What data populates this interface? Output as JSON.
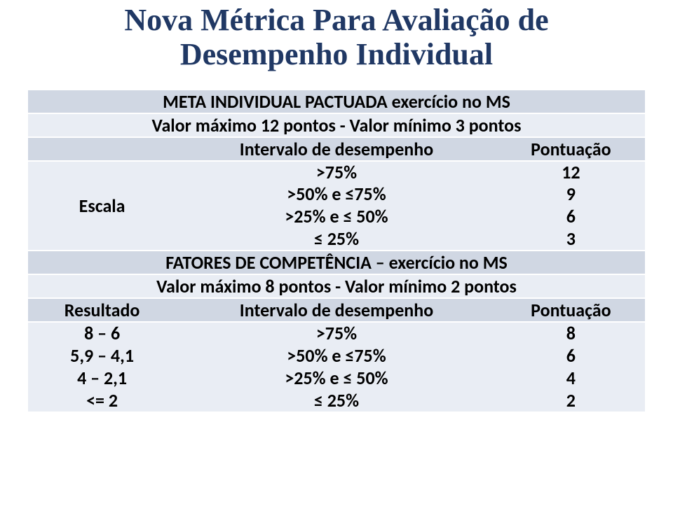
{
  "title": {
    "line1": "Nova Métrica Para  Avaliação de",
    "line2": "Desempenho Individual",
    "color": "#203864",
    "font_family": "Times New Roman",
    "font_size_pt": 32,
    "font_weight": "bold"
  },
  "table": {
    "band_colors": {
      "dark": "#d0d7e3",
      "light": "#e9edf4"
    },
    "separator_color": "#ffffff",
    "text_color": "#000000",
    "font_size_pt": 20,
    "font_weight": "bold",
    "section1": {
      "header": "META INDIVIDUAL PACTUADA exercício no MS",
      "sub": "Valor máximo 12 pontos - Valor mínimo 3 pontos",
      "left_label": "Escala",
      "mid_header": "Intervalo de desempenho",
      "right_header": "Pontuação",
      "intervals": [
        ">75%",
        ">50% e ≤75%",
        ">25% e ≤ 50%",
        "≤ 25%"
      ],
      "scores": [
        "12",
        "9",
        "6",
        "3"
      ]
    },
    "section2": {
      "header": "FATORES DE COMPETÊNCIA – exercício no MS",
      "sub": "Valor máximo 8 pontos - Valor mínimo 2 pontos",
      "left_label": "Resultado",
      "mid_header": "Intervalo de desempenho",
      "right_header": "Pontuação",
      "result_bins": [
        "8 – 6",
        "5,9 – 4,1",
        "4 – 2,1",
        "<= 2"
      ],
      "intervals": [
        ">75%",
        ">50% e ≤75%",
        ">25% e ≤ 50%",
        "≤ 25%"
      ],
      "scores": [
        "8",
        "6",
        "4",
        "2"
      ]
    }
  }
}
